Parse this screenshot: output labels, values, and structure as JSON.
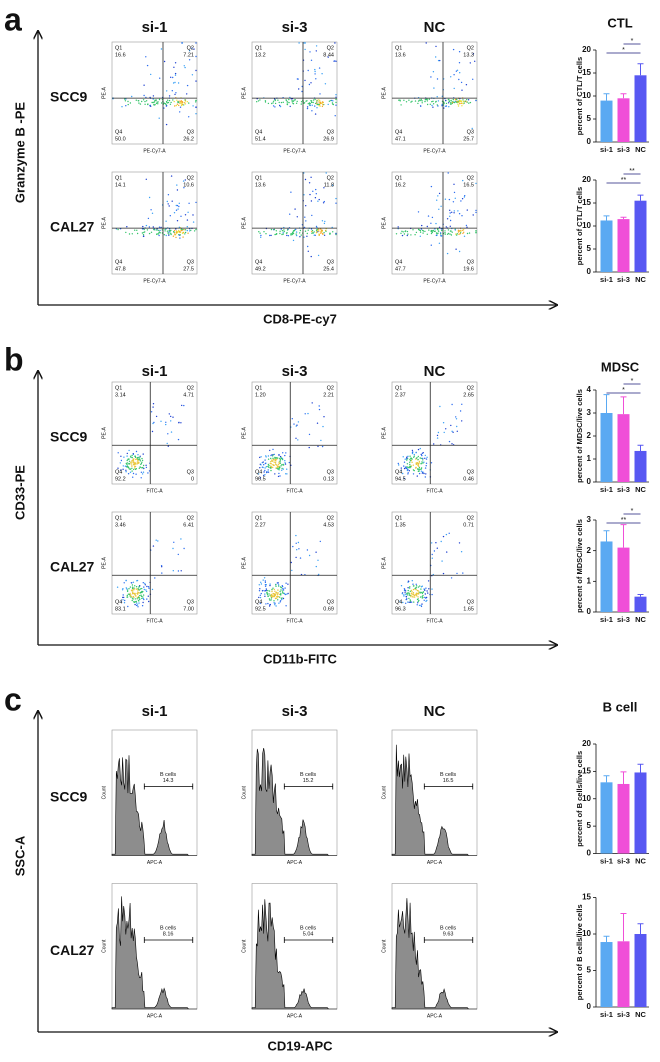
{
  "panels": [
    {
      "letter": "a",
      "columns": [
        "si-1",
        "si-3",
        "NC"
      ],
      "rows": [
        "SCC9",
        "CAL27"
      ],
      "y_label": "Granzyme B -PE",
      "x_label": "CD8-PE-cy7",
      "plot_x_label": "PE-Cy7-A",
      "plot_y_label": "PE-A",
      "plots": [
        [
          {
            "quadrants": [
              {
                "name": "Q1",
                "value": "16.6"
              },
              {
                "name": "Q2",
                "value": "7.21"
              },
              {
                "name": "Q4",
                "value": "50.0"
              },
              {
                "name": "Q3",
                "value": "26.2"
              }
            ]
          },
          {
            "quadrants": [
              {
                "name": "Q1",
                "value": "13.2"
              },
              {
                "name": "Q2",
                "value": "8.44"
              },
              {
                "name": "Q4",
                "value": "51.4"
              },
              {
                "name": "Q3",
                "value": "26.9"
              }
            ]
          },
          {
            "quadrants": [
              {
                "name": "Q1",
                "value": "13.6"
              },
              {
                "name": "Q2",
                "value": "13.3"
              },
              {
                "name": "Q4",
                "value": "47.1"
              },
              {
                "name": "Q3",
                "value": "25.7"
              }
            ]
          }
        ],
        [
          {
            "quadrants": [
              {
                "name": "Q1",
                "value": "14.1"
              },
              {
                "name": "Q2",
                "value": "10.6"
              },
              {
                "name": "Q4",
                "value": "47.8"
              },
              {
                "name": "Q3",
                "value": "27.5"
              }
            ]
          },
          {
            "quadrants": [
              {
                "name": "Q1",
                "value": "13.6"
              },
              {
                "name": "Q2",
                "value": "11.8"
              },
              {
                "name": "Q4",
                "value": "49.2"
              },
              {
                "name": "Q3",
                "value": "25.4"
              }
            ]
          },
          {
            "quadrants": [
              {
                "name": "Q1",
                "value": "16.2"
              },
              {
                "name": "Q2",
                "value": "16.5"
              },
              {
                "name": "Q4",
                "value": "47.7"
              },
              {
                "name": "Q3",
                "value": "19.6"
              }
            ]
          }
        ]
      ]
    },
    {
      "letter": "b",
      "columns": [
        "si-1",
        "si-3",
        "NC"
      ],
      "rows": [
        "SCC9",
        "CAL27"
      ],
      "y_label": "CD33-PE",
      "x_label": "CD11b-FITC",
      "plot_x_label": "FITC-A",
      "plot_y_label": "PE-A",
      "plots": [
        [
          {
            "quadrants": [
              {
                "name": "Q1",
                "value": "3.14"
              },
              {
                "name": "Q2",
                "value": "4.71"
              },
              {
                "name": "Q4",
                "value": "92.2"
              },
              {
                "name": "Q3",
                "value": "0"
              }
            ]
          },
          {
            "quadrants": [
              {
                "name": "Q1",
                "value": "1.20"
              },
              {
                "name": "Q2",
                "value": "2.21"
              },
              {
                "name": "Q4",
                "value": "96.5"
              },
              {
                "name": "Q3",
                "value": "0.13"
              }
            ]
          },
          {
            "quadrants": [
              {
                "name": "Q1",
                "value": "2.37"
              },
              {
                "name": "Q2",
                "value": "2.65"
              },
              {
                "name": "Q4",
                "value": "94.5"
              },
              {
                "name": "Q3",
                "value": "0.46"
              }
            ]
          }
        ],
        [
          {
            "quadrants": [
              {
                "name": "Q1",
                "value": "3.46"
              },
              {
                "name": "Q2",
                "value": "6.41"
              },
              {
                "name": "Q4",
                "value": "83.1"
              },
              {
                "name": "Q3",
                "value": "7.00"
              }
            ]
          },
          {
            "quadrants": [
              {
                "name": "Q1",
                "value": "2.27"
              },
              {
                "name": "Q2",
                "value": "4.53"
              },
              {
                "name": "Q4",
                "value": "92.5"
              },
              {
                "name": "Q3",
                "value": "0.69"
              }
            ]
          },
          {
            "quadrants": [
              {
                "name": "Q1",
                "value": "1.35"
              },
              {
                "name": "Q2",
                "value": "0.71"
              },
              {
                "name": "Q4",
                "value": "96.3"
              },
              {
                "name": "Q3",
                "value": "1.65"
              }
            ]
          }
        ]
      ]
    },
    {
      "letter": "c",
      "columns": [
        "si-1",
        "si-3",
        "NC"
      ],
      "rows": [
        "SCC9",
        "CAL27"
      ],
      "y_label": "SSC-A",
      "x_label": "CD19-APC",
      "plot_x_label": "APC-A",
      "plot_y_label": "Count",
      "plots": [
        [
          {
            "gate": "B cells",
            "value": "14.3"
          },
          {
            "gate": "B cells",
            "value": "15.2"
          },
          {
            "gate": "B cells",
            "value": "16.5"
          }
        ],
        [
          {
            "gate": "B cells",
            "value": "8.16"
          },
          {
            "gate": "B cells",
            "value": "5.04"
          },
          {
            "gate": "B cells",
            "value": "9.63"
          }
        ]
      ]
    }
  ],
  "chart_data": [
    {
      "type": "bar",
      "title": "CTL",
      "y_label": "percent of CTL/T cells",
      "categories": [
        "si-1",
        "si-3",
        "NC"
      ],
      "values": [
        9,
        9.5,
        14.5
      ],
      "errors": [
        1.5,
        1,
        2.5
      ],
      "colors": [
        "#5aa9f2",
        "#f04fd8",
        "#5858f2"
      ],
      "ylim": [
        0,
        20
      ],
      "yticks": [
        0,
        5,
        10,
        15,
        20
      ],
      "comparisons": [
        {
          "pair": [
            "si-3",
            "NC"
          ],
          "label": "*"
        },
        {
          "pair": [
            "si-1",
            "NC"
          ],
          "label": "*"
        }
      ]
    },
    {
      "type": "bar",
      "y_label": "percent of CTL/T cells",
      "categories": [
        "si-1",
        "si-3",
        "NC"
      ],
      "values": [
        11.2,
        11.5,
        15.5
      ],
      "errors": [
        1,
        0.4,
        1.2
      ],
      "colors": [
        "#5aa9f2",
        "#f04fd8",
        "#5858f2"
      ],
      "ylim": [
        0,
        20
      ],
      "yticks": [
        0,
        5,
        10,
        15,
        20
      ],
      "comparisons": [
        {
          "pair": [
            "si-3",
            "NC"
          ],
          "label": "**"
        },
        {
          "pair": [
            "si-1",
            "NC"
          ],
          "label": "**"
        }
      ]
    },
    {
      "type": "bar",
      "title": "MDSC",
      "y_label": "percent of MDSC/live cells",
      "categories": [
        "si-1",
        "si-3",
        "NC"
      ],
      "values": [
        3,
        2.95,
        1.35
      ],
      "errors": [
        0.8,
        0.75,
        0.25
      ],
      "colors": [
        "#5aa9f2",
        "#f04fd8",
        "#5858f2"
      ],
      "ylim": [
        0,
        4
      ],
      "yticks": [
        0,
        1,
        2,
        3,
        4
      ],
      "comparisons": [
        {
          "pair": [
            "si-3",
            "NC"
          ],
          "label": "*"
        },
        {
          "pair": [
            "si-1",
            "NC"
          ],
          "label": "*"
        }
      ]
    },
    {
      "type": "bar",
      "y_label": "percent of MDSC/live cells",
      "categories": [
        "si-1",
        "si-3",
        "NC"
      ],
      "values": [
        2.3,
        2.1,
        0.5
      ],
      "errors": [
        0.35,
        0.75,
        0.07
      ],
      "colors": [
        "#5aa9f2",
        "#f04fd8",
        "#5858f2"
      ],
      "ylim": [
        0,
        3
      ],
      "yticks": [
        0,
        1,
        2,
        3
      ],
      "comparisons": [
        {
          "pair": [
            "si-3",
            "NC"
          ],
          "label": "*"
        },
        {
          "pair": [
            "si-1",
            "NC"
          ],
          "label": "**"
        }
      ]
    },
    {
      "type": "bar",
      "title": "B cell",
      "y_label": "percent of B cells/live cells",
      "categories": [
        "si-1",
        "si-3",
        "NC"
      ],
      "values": [
        13,
        12.7,
        14.8
      ],
      "errors": [
        1.2,
        2.2,
        1.5
      ],
      "colors": [
        "#5aa9f2",
        "#f04fd8",
        "#5858f2"
      ],
      "ylim": [
        0,
        20
      ],
      "yticks": [
        0,
        5,
        10,
        15,
        20
      ]
    },
    {
      "type": "bar",
      "y_label": "percent of B cells/live cells",
      "categories": [
        "si-1",
        "si-3",
        "NC"
      ],
      "values": [
        8.9,
        9,
        10
      ],
      "errors": [
        0.8,
        3.8,
        1.4
      ],
      "colors": [
        "#5aa9f2",
        "#f04fd8",
        "#5858f2"
      ],
      "ylim": [
        0,
        15
      ],
      "yticks": [
        0,
        5,
        10,
        15
      ]
    }
  ]
}
